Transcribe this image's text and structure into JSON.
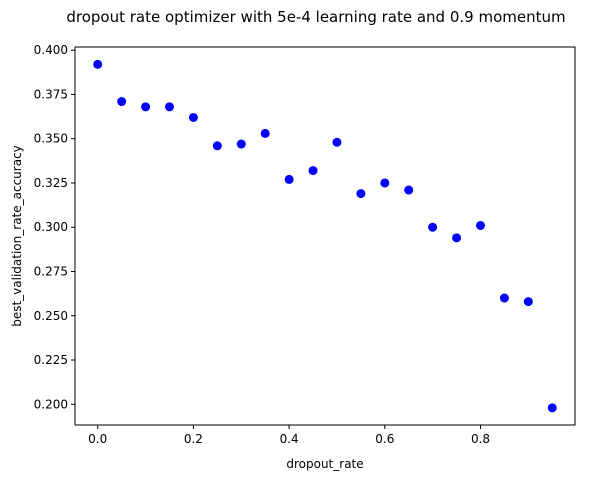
{
  "chart_data": {
    "type": "scatter",
    "title": "dropout rate optimizer with 5e-4 learning rate and 0.9 momentum",
    "xlabel": "dropout_rate",
    "ylabel": "best_validation_rate_accuracy",
    "xlim": [
      -0.0475,
      0.9975
    ],
    "ylim": [
      0.1883,
      0.4018
    ],
    "xticks": [
      0.0,
      0.2,
      0.4,
      0.6,
      0.8
    ],
    "xtick_labels": [
      "0.0",
      "0.2",
      "0.4",
      "0.6",
      "0.8"
    ],
    "yticks": [
      0.2,
      0.225,
      0.25,
      0.275,
      0.3,
      0.325,
      0.35,
      0.375,
      0.4
    ],
    "ytick_labels": [
      "0.200",
      "0.225",
      "0.250",
      "0.275",
      "0.300",
      "0.325",
      "0.350",
      "0.375",
      "0.400"
    ],
    "grid": false,
    "marker_color": "#0000ff",
    "x": [
      0.0,
      0.05,
      0.1,
      0.15,
      0.2,
      0.25,
      0.3,
      0.35,
      0.4,
      0.45,
      0.5,
      0.55,
      0.6,
      0.65,
      0.7,
      0.75,
      0.8,
      0.85,
      0.9,
      0.95
    ],
    "y": [
      0.392,
      0.371,
      0.368,
      0.368,
      0.362,
      0.346,
      0.347,
      0.353,
      0.327,
      0.332,
      0.348,
      0.319,
      0.325,
      0.321,
      0.3,
      0.294,
      0.301,
      0.26,
      0.258,
      0.198
    ]
  }
}
